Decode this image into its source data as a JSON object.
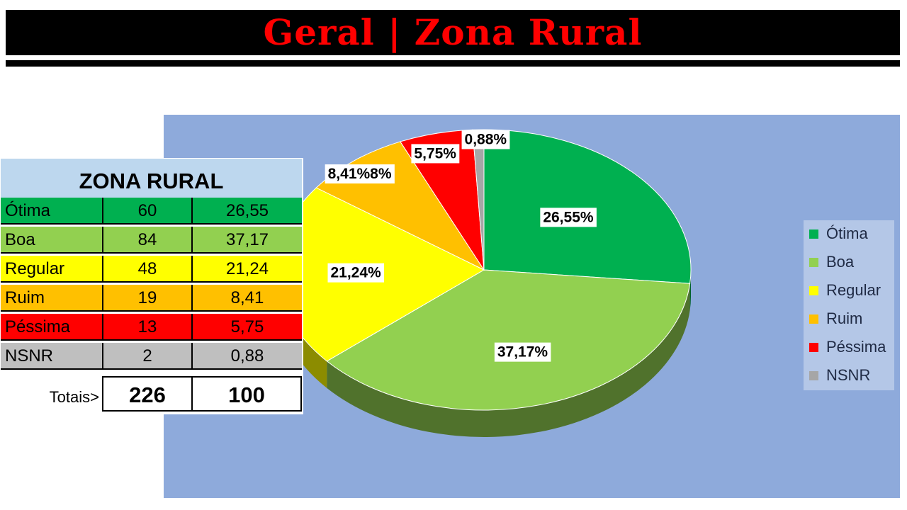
{
  "header": {
    "title": "Geral | Zona Rural"
  },
  "table": {
    "title": "ZONA RURAL",
    "rows": [
      {
        "label": "Ótima",
        "count": "60",
        "percent": "26,55",
        "color": "#00b050"
      },
      {
        "label": "Boa",
        "count": "84",
        "percent": "37,17",
        "color": "#92d050"
      },
      {
        "label": "Regular",
        "count": "48",
        "percent": "21,24",
        "color": "#ffff00"
      },
      {
        "label": "Ruim",
        "count": "19",
        "percent": "8,41",
        "color": "#ffc000"
      },
      {
        "label": "Péssima",
        "count": "13",
        "percent": "5,75",
        "color": "#ff0000"
      },
      {
        "label": "NSNR",
        "count": "2",
        "percent": "0,88",
        "color": "#bfbfbf"
      }
    ],
    "totals": {
      "label": "Totais>",
      "count": "226",
      "percent": "100"
    }
  },
  "chart_data": {
    "type": "pie",
    "categories": [
      "Ótima",
      "Boa",
      "Regular",
      "Ruim",
      "Péssima",
      "NSNR"
    ],
    "values": [
      26.55,
      37.17,
      21.24,
      8.41,
      5.75,
      0.88
    ],
    "data_labels": [
      "26,55%",
      "37,17%",
      "21,24%",
      "8,41%8%",
      "5,75%",
      "0,88%"
    ],
    "colors": [
      "#00b050",
      "#92d050",
      "#ffff00",
      "#ffc000",
      "#ff0000",
      "#a6a6a6"
    ],
    "style": "3d",
    "legend": {
      "position": "right",
      "entries": [
        "Ótima",
        "Boa",
        "Regular",
        "Ruim",
        "Péssima",
        "NSNR"
      ]
    }
  }
}
